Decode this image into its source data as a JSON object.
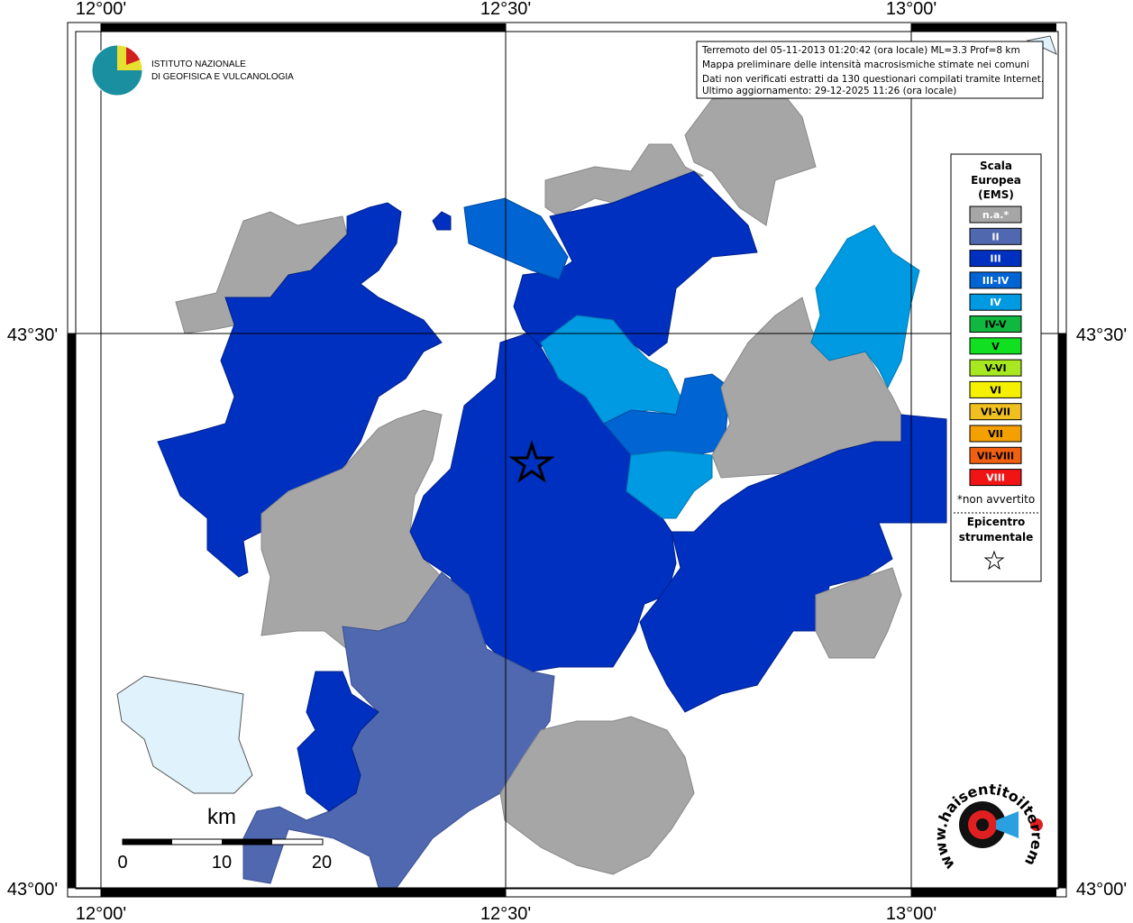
{
  "header": {
    "logo_lines": [
      "ISTITUTO NAZIONALE",
      "DI GEOFISICA E VULCANOLOGIA"
    ]
  },
  "info_box": {
    "lines": [
      "Terremoto del 05-11-2013 01:20:42 (ora locale) ML=3.3 Prof=8 km",
      "Mappa preliminare delle intensità macrosismiche stimate nei comuni",
      "Dati non verificati estratti da 130 questionari compilati tramite Internet.",
      "Ultimo aggiornamento: 29-12-2025 11:26 (ora locale)"
    ]
  },
  "axes": {
    "longitude_labels": [
      "12°00'",
      "12°30'",
      "13°00'"
    ],
    "latitude_labels": [
      "43°30'",
      "43°00'"
    ]
  },
  "legend": {
    "title_lines": [
      "Scala",
      "Europea",
      "(EMS)"
    ],
    "items": [
      {
        "label": "n.a.*",
        "color": "#a6a6a6",
        "text_color": "#ffffff"
      },
      {
        "label": "II",
        "color": "#5068b0",
        "text_color": "#ffffff"
      },
      {
        "label": "III",
        "color": "#0030c0",
        "text_color": "#ffffff"
      },
      {
        "label": "III-IV",
        "color": "#0064d2",
        "text_color": "#ffffff"
      },
      {
        "label": "IV",
        "color": "#009ae2",
        "text_color": "#ffffff"
      },
      {
        "label": "IV-V",
        "color": "#10b840",
        "text_color": "#000000"
      },
      {
        "label": "V",
        "color": "#10e020",
        "text_color": "#000000"
      },
      {
        "label": "V-VI",
        "color": "#a8e820",
        "text_color": "#000000"
      },
      {
        "label": "VI",
        "color": "#f4f000",
        "text_color": "#000000"
      },
      {
        "label": "VI-VII",
        "color": "#f0c020",
        "text_color": "#000000"
      },
      {
        "label": "VII",
        "color": "#f4a000",
        "text_color": "#000000"
      },
      {
        "label": "VII-VIII",
        "color": "#f06010",
        "text_color": "#000000"
      },
      {
        "label": "VIII",
        "color": "#f01414",
        "text_color": "#ffffff"
      }
    ],
    "note": "*non avvertito",
    "epicenter_lines": [
      "Epicentro",
      "strumentale"
    ]
  },
  "scale_bar": {
    "unit": "km",
    "labels": [
      "0",
      "10",
      "20"
    ]
  },
  "site_logo": {
    "text": "www.haisentitoilterremoto.it"
  }
}
